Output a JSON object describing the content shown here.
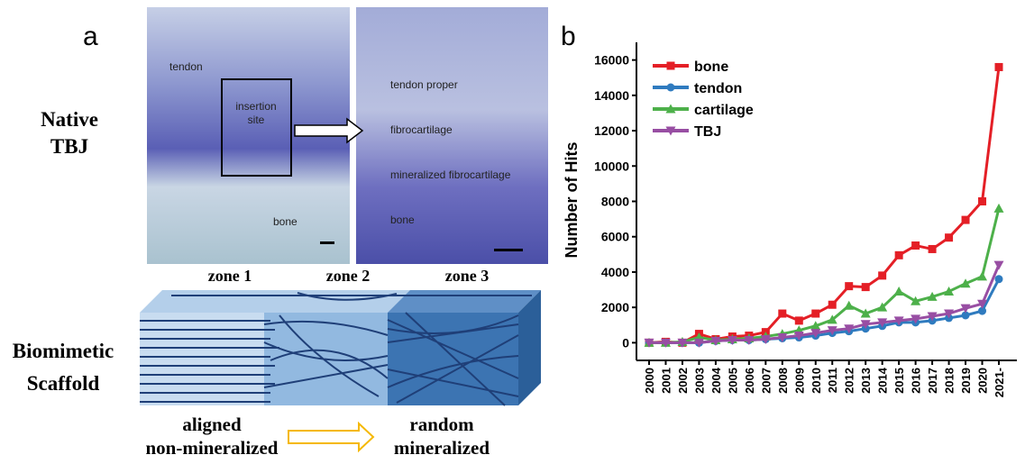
{
  "panel_a": {
    "label": "a",
    "native_label": [
      "Native",
      "TBJ"
    ],
    "left_image_labels": [
      "tendon",
      "insertion",
      "site",
      "bone"
    ],
    "right_image_labels": [
      "tendon proper",
      "fibrocartilage",
      "mineralized fibrocartilage",
      "bone"
    ],
    "zones": [
      "zone 1",
      "zone 2",
      "zone 3"
    ],
    "scaffold_label": [
      "Biomimetic",
      "Scaffold"
    ],
    "left_caption": [
      "aligned",
      "non-mineralized"
    ],
    "right_caption": [
      "random",
      "mineralized"
    ]
  },
  "chart_data": {
    "type": "line",
    "panel_label": "b",
    "y_label": "Number of Hits",
    "categories": [
      "2000",
      "2001",
      "2002",
      "2003",
      "2004",
      "2005",
      "2006",
      "2007",
      "2008",
      "2009",
      "2010",
      "2011",
      "2012",
      "2013",
      "2014",
      "2015",
      "2016",
      "2017",
      "2018",
      "2019",
      "2020",
      "2021-"
    ],
    "series": [
      {
        "name": "bone",
        "color": "#e41f26",
        "marker": "square",
        "values": [
          0,
          50,
          0,
          500,
          200,
          350,
          400,
          600,
          1650,
          1250,
          1650,
          2150,
          3200,
          3150,
          3800,
          4950,
          5500,
          5300,
          5950,
          6950,
          8000,
          15600
        ]
      },
      {
        "name": "tendon",
        "color": "#2f7bbf",
        "marker": "circle",
        "values": [
          0,
          0,
          0,
          0,
          100,
          150,
          150,
          200,
          250,
          300,
          400,
          550,
          650,
          800,
          950,
          1150,
          1150,
          1250,
          1400,
          1550,
          1800,
          3600
        ]
      },
      {
        "name": "cartilage",
        "color": "#4db04a",
        "marker": "triangle-up",
        "values": [
          0,
          0,
          50,
          300,
          150,
          200,
          250,
          350,
          500,
          700,
          950,
          1300,
          2100,
          1650,
          2000,
          2900,
          2350,
          2600,
          2900,
          3350,
          3750,
          7600
        ]
      },
      {
        "name": "TBJ",
        "color": "#984ea3",
        "marker": "triangle-down",
        "values": [
          0,
          0,
          0,
          0,
          100,
          150,
          150,
          200,
          300,
          400,
          550,
          700,
          800,
          1050,
          1150,
          1250,
          1350,
          1500,
          1650,
          1950,
          2200,
          4400
        ]
      }
    ],
    "ylim": [
      -1000,
      17000
    ],
    "yticks": [
      0,
      2000,
      4000,
      6000,
      8000,
      10000,
      12000,
      14000,
      16000
    ],
    "legend": "upper left",
    "grid": false
  }
}
